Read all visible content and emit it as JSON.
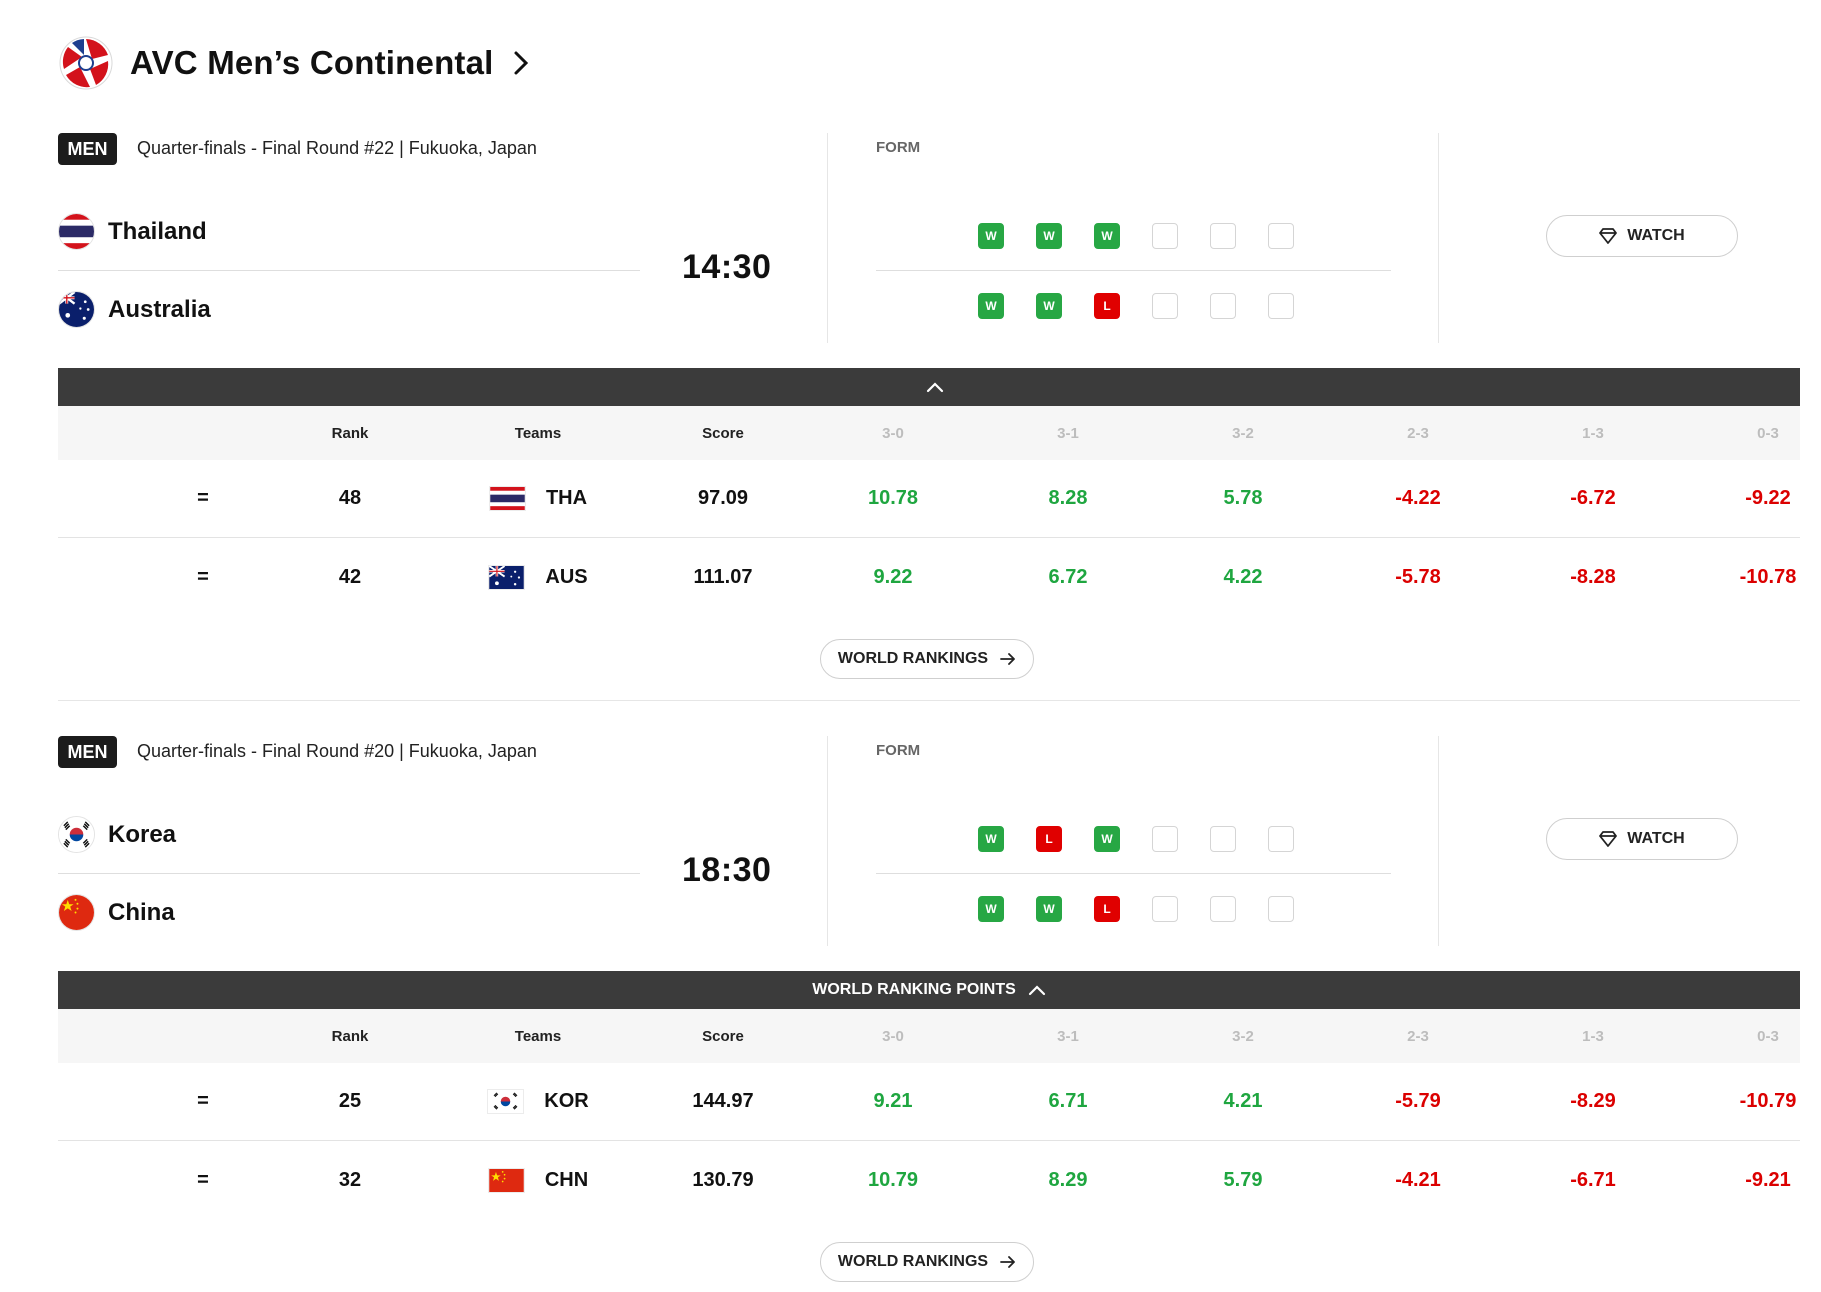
{
  "header": {
    "title": "AVC Men’s Continental"
  },
  "colors": {
    "win": "#27a744",
    "loss": "#e00000",
    "positive": "#1fa640",
    "negative": "#db0000",
    "bar": "#3b3b3b"
  },
  "columns": {
    "rank": "Rank",
    "teams": "Teams",
    "score": "Score",
    "results": [
      "3-0",
      "3-1",
      "3-2",
      "2-3",
      "1-3",
      "0-3"
    ]
  },
  "matches": [
    {
      "badge": "MEN",
      "round": "Quarter-finals - Final Round #22 | Fukuoka, Japan",
      "time": "14:30",
      "form_label": "FORM",
      "watch_label": "WATCH",
      "bar_label": "",
      "world_rankings_label": "WORLD RANKINGS",
      "teams": [
        {
          "name": "Thailand",
          "code": "THA",
          "flag": "thailand-flag",
          "rank": "48",
          "score": "97.09",
          "trend": "=",
          "form": [
            "W",
            "W",
            "W",
            "",
            "",
            ""
          ],
          "points": [
            "10.78",
            "8.28",
            "5.78",
            "-4.22",
            "-6.72",
            "-9.22"
          ]
        },
        {
          "name": "Australia",
          "code": "AUS",
          "flag": "australia-flag",
          "rank": "42",
          "score": "111.07",
          "trend": "=",
          "form": [
            "W",
            "W",
            "L",
            "",
            "",
            ""
          ],
          "points": [
            "9.22",
            "6.72",
            "4.22",
            "-5.78",
            "-8.28",
            "-10.78"
          ]
        }
      ]
    },
    {
      "badge": "MEN",
      "round": "Quarter-finals - Final Round #20 | Fukuoka, Japan",
      "time": "18:30",
      "form_label": "FORM",
      "watch_label": "WATCH",
      "bar_label": "WORLD RANKING POINTS",
      "world_rankings_label": "WORLD RANKINGS",
      "teams": [
        {
          "name": "Korea",
          "code": "KOR",
          "flag": "korea-flag",
          "rank": "25",
          "score": "144.97",
          "trend": "=",
          "form": [
            "W",
            "L",
            "W",
            "",
            "",
            ""
          ],
          "points": [
            "9.21",
            "6.71",
            "4.21",
            "-5.79",
            "-8.29",
            "-10.79"
          ]
        },
        {
          "name": "China",
          "code": "CHN",
          "flag": "china-flag",
          "rank": "32",
          "score": "130.79",
          "trend": "=",
          "form": [
            "W",
            "W",
            "L",
            "",
            "",
            ""
          ],
          "points": [
            "10.79",
            "8.29",
            "5.79",
            "-4.21",
            "-6.71",
            "-9.21"
          ]
        }
      ]
    }
  ]
}
